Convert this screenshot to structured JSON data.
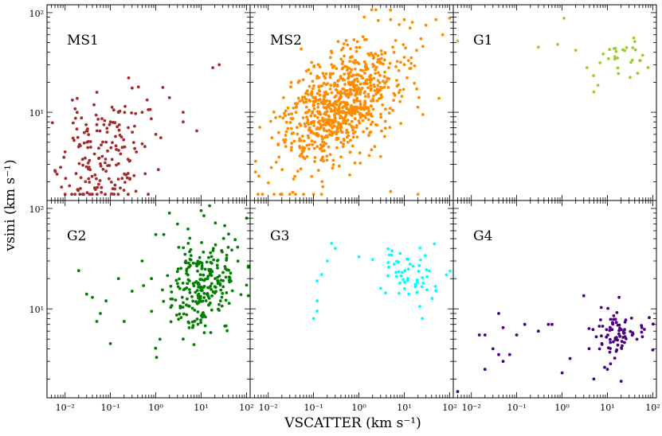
{
  "figure": {
    "xlabel": "VSCATTER (km s⁻¹)",
    "ylabel": "vsini (km s⁻¹)",
    "x_tick_labels": [
      "10⁻²",
      "10⁻¹",
      "10⁰",
      "10¹",
      "10²"
    ],
    "y_tick_labels": [
      "10¹",
      "10²"
    ]
  },
  "chart_data": {
    "type": "scatter",
    "xscale": "log",
    "yscale": "log",
    "xlim": [
      0.004,
      120
    ],
    "ylim": [
      1.3,
      120
    ],
    "grid": false,
    "layout": "2 rows x 3 columns, shared axes",
    "panels": [
      {
        "label": "MS1",
        "color": "#a52a2a",
        "generate": {
          "n": 170,
          "xmu": -1.15,
          "xsd": 0.45,
          "ymu": 0.55,
          "ysd": 0.3,
          "rho": 0.2,
          "seed": 11
        },
        "points": [
          [
            0.006,
            2.6
          ],
          [
            0.008,
            2.8
          ],
          [
            0.01,
            1.5
          ],
          [
            0.01,
            4
          ],
          [
            0.015,
            5.5
          ],
          [
            0.02,
            4.5
          ],
          [
            0.03,
            6.5
          ],
          [
            0.05,
            7.5
          ],
          [
            0.1,
            8
          ],
          [
            0.15,
            10
          ],
          [
            0.3,
            17.5
          ],
          [
            0.5,
            10
          ],
          [
            1,
            6
          ],
          [
            2,
            14
          ],
          [
            4,
            10
          ],
          [
            4,
            8
          ],
          [
            8,
            6.5
          ],
          [
            18,
            28
          ],
          [
            25,
            30
          ]
        ]
      },
      {
        "label": "MS2",
        "color": "#ff8c00",
        "generate": {
          "n": 800,
          "xmu": -0.45,
          "xsd": 0.65,
          "ymu": 1.05,
          "ysd": 0.3,
          "rho": 0.5,
          "seed": 23
        },
        "points": [
          [
            0.02,
            1.5
          ],
          [
            0.03,
            1.5
          ],
          [
            0.04,
            1.5
          ],
          [
            0.06,
            1.5
          ],
          [
            0.1,
            1.5
          ],
          [
            0.15,
            1.5
          ],
          [
            5,
            1.6
          ],
          [
            20,
            1.5
          ],
          [
            3,
            3.6
          ],
          [
            5,
            85
          ],
          [
            10,
            85
          ],
          [
            15,
            80
          ],
          [
            30,
            75
          ],
          [
            50,
            85
          ],
          [
            100,
            88
          ],
          [
            70,
            60
          ]
        ]
      },
      {
        "label": "G1",
        "color": "#9acd32",
        "generate": {
          "n": 30,
          "xmu": 1.2,
          "xsd": 0.35,
          "ymu": 1.55,
          "ysd": 0.13,
          "rho": 0,
          "seed": 5
        },
        "points": [
          [
            0.005,
            52
          ],
          [
            0.3,
            45
          ],
          [
            0.8,
            48
          ],
          [
            1.1,
            88
          ],
          [
            5,
            16
          ],
          [
            2,
            42
          ]
        ]
      },
      {
        "label": "G2",
        "color": "#008000",
        "generate": {
          "n": 260,
          "xmu": 1.05,
          "xsd": 0.4,
          "ymu": 1.25,
          "ysd": 0.25,
          "rho": 0.25,
          "seed": 31
        },
        "points": [
          [
            0.02,
            24
          ],
          [
            0.03,
            14
          ],
          [
            0.04,
            13
          ],
          [
            0.05,
            7.5
          ],
          [
            0.06,
            9
          ],
          [
            0.08,
            12
          ],
          [
            0.1,
            4.5
          ],
          [
            0.15,
            20
          ],
          [
            0.2,
            7.5
          ],
          [
            0.3,
            15
          ],
          [
            0.5,
            30
          ],
          [
            0.8,
            20
          ],
          [
            1,
            55
          ],
          [
            1.5,
            55
          ],
          [
            2,
            90
          ],
          [
            3,
            70
          ],
          [
            10,
            95
          ],
          [
            100,
            80
          ],
          [
            4,
            5
          ]
        ]
      },
      {
        "label": "G3",
        "color": "#00ffff",
        "generate": {
          "n": 55,
          "xmu": 1.1,
          "xsd": 0.3,
          "ymu": 1.35,
          "ysd": 0.16,
          "rho": 0,
          "seed": 7
        },
        "points": [
          [
            0.1,
            8
          ],
          [
            0.12,
            9.5
          ],
          [
            0.12,
            12
          ],
          [
            0.12,
            19
          ],
          [
            0.15,
            22
          ],
          [
            0.2,
            30
          ],
          [
            0.25,
            45
          ],
          [
            0.3,
            40
          ],
          [
            1,
            33
          ],
          [
            2,
            31
          ],
          [
            3,
            16
          ],
          [
            25,
            8
          ]
        ]
      },
      {
        "label": "G4",
        "color": "#4b0082",
        "generate": {
          "n": 80,
          "xmu": 1.1,
          "xsd": 0.35,
          "ymu": 0.75,
          "ysd": 0.12,
          "rho": 0,
          "seed": 13
        },
        "points": [
          [
            0.005,
            1.5
          ],
          [
            0.015,
            5.5
          ],
          [
            0.02,
            2.5
          ],
          [
            0.02,
            5.5
          ],
          [
            0.03,
            4
          ],
          [
            0.04,
            3.5
          ],
          [
            0.04,
            9
          ],
          [
            0.05,
            3
          ],
          [
            0.05,
            6.5
          ],
          [
            0.07,
            3.5
          ],
          [
            0.1,
            5.5
          ],
          [
            0.15,
            7
          ],
          [
            0.3,
            6
          ],
          [
            0.5,
            7
          ],
          [
            0.6,
            7
          ],
          [
            1,
            2.3
          ],
          [
            1.5,
            3.2
          ],
          [
            3,
            13.5
          ],
          [
            5,
            2
          ],
          [
            10,
            2.5
          ],
          [
            20,
            1.9
          ],
          [
            18,
            13
          ]
        ]
      }
    ]
  }
}
